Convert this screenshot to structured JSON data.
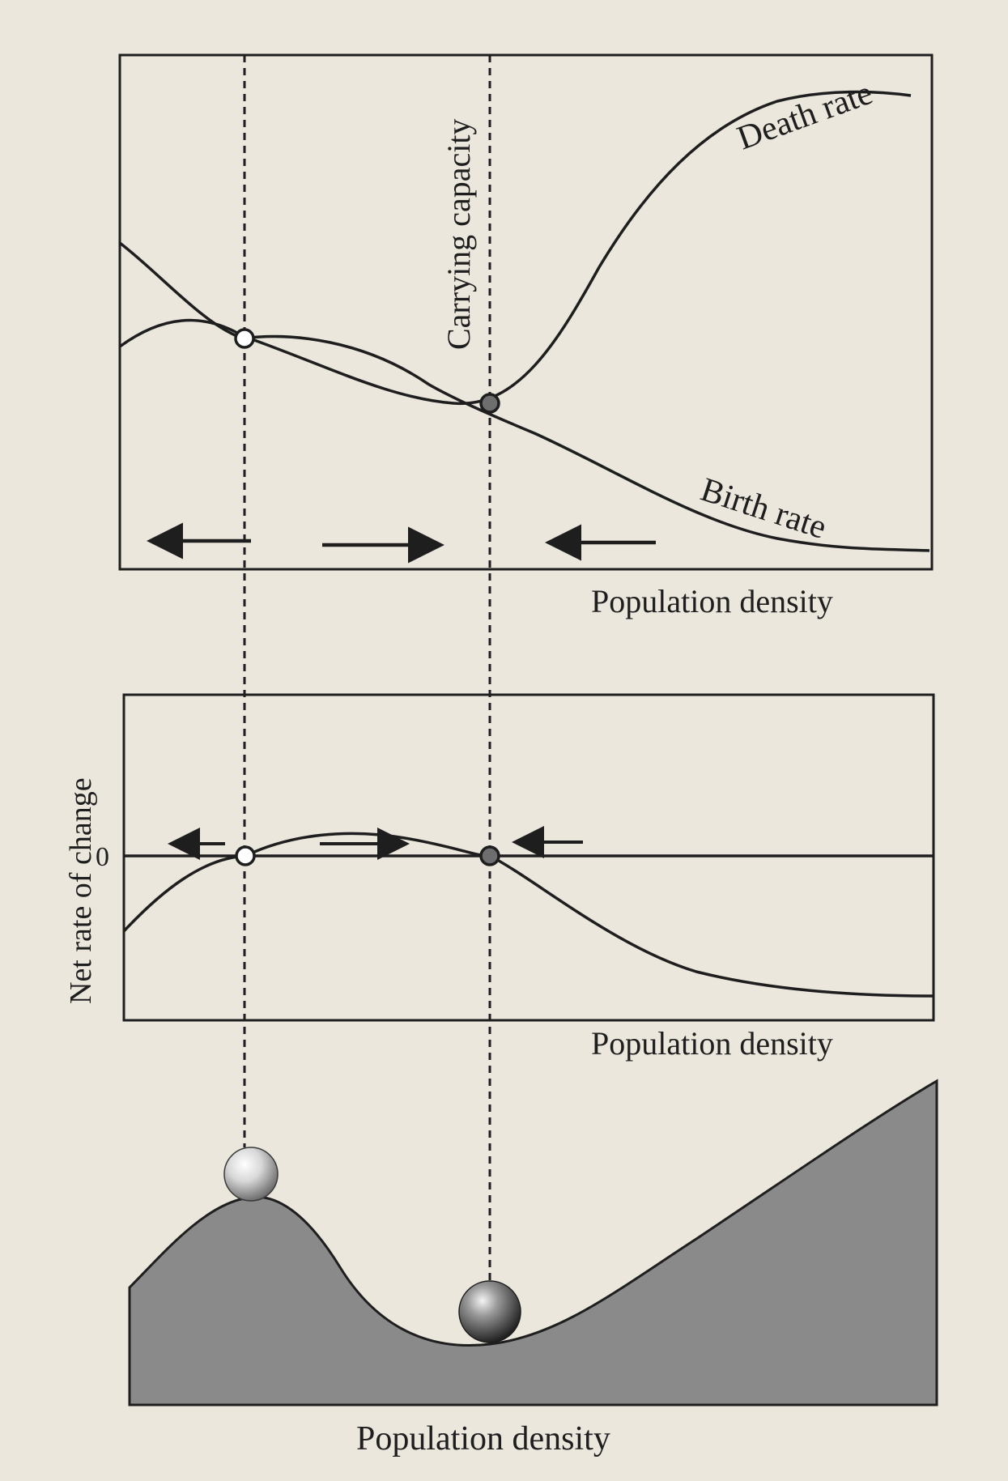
{
  "figure": {
    "top_panel": {
      "death_rate_label": "Death rate",
      "birth_rate_label": "Birth rate",
      "carrying_capacity_label": "Carrying capacity",
      "xlabel": "Population density"
    },
    "middle_panel": {
      "ylabel": "Net rate of change",
      "zero_tick": "0",
      "xlabel": "Population density"
    },
    "bottom_panel": {
      "xlabel": "Population density"
    }
  },
  "colors": {
    "ink": "#1e1e1e",
    "paper": "#ebe7dd",
    "landscape_fill": "#8a8a8a",
    "unstable_marker_fill": "#ffffff",
    "stable_marker_fill": "#6e6e6e"
  }
}
